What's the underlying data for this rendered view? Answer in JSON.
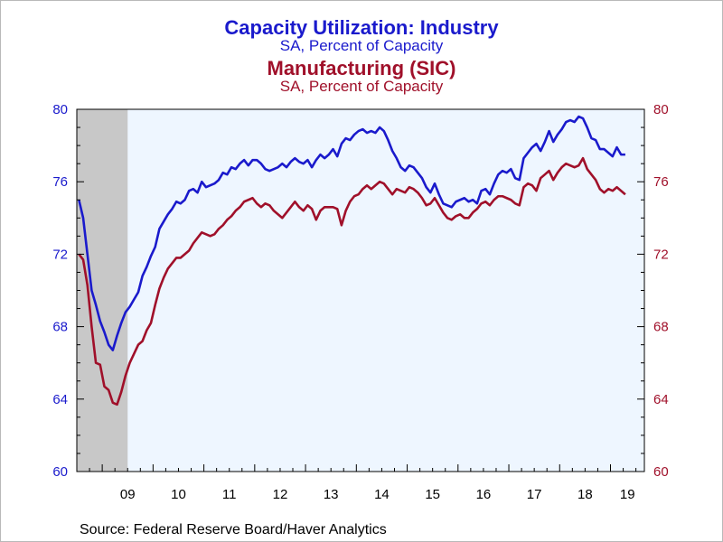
{
  "chart_data": {
    "type": "line",
    "title": "Capacity Utilization: Industry",
    "subtitle": "SA, Percent of Capacity",
    "title2": "Manufacturing (SIC)",
    "subtitle2": "SA, Percent of Capacity",
    "source": "Source:  Federal Reserve Board/Haver Analytics",
    "x_start": "2008-07",
    "x_end": "2019-08",
    "frequency": "monthly",
    "x_tick_labels": [
      "09",
      "10",
      "11",
      "12",
      "13",
      "14",
      "15",
      "16",
      "17",
      "18",
      "19"
    ],
    "ylim": [
      60,
      80
    ],
    "y_ticks": [
      60,
      64,
      68,
      72,
      76,
      80
    ],
    "recession": {
      "start": "2008-07",
      "end": "2009-06",
      "color": "#c8c8c8"
    },
    "plot_background": "#eef6ff",
    "series": [
      {
        "name": "Capacity Utilization: Industry",
        "axis": "left",
        "color": "#1a1acc",
        "values": [
          75.0,
          74.0,
          72.0,
          70.0,
          69.2,
          68.3,
          67.7,
          67.0,
          66.7,
          67.5,
          68.2,
          68.8,
          69.1,
          69.5,
          69.9,
          70.8,
          71.3,
          71.9,
          72.4,
          73.4,
          73.8,
          74.2,
          74.5,
          74.9,
          74.8,
          75.0,
          75.5,
          75.6,
          75.4,
          76.0,
          75.7,
          75.8,
          75.9,
          76.1,
          76.5,
          76.4,
          76.8,
          76.7,
          77.0,
          77.2,
          76.9,
          77.2,
          77.2,
          77.0,
          76.7,
          76.6,
          76.7,
          76.8,
          77.0,
          76.8,
          77.1,
          77.3,
          77.1,
          77.0,
          77.2,
          76.8,
          77.2,
          77.5,
          77.3,
          77.5,
          77.8,
          77.4,
          78.1,
          78.4,
          78.3,
          78.6,
          78.8,
          78.9,
          78.7,
          78.8,
          78.7,
          79.0,
          78.8,
          78.3,
          77.7,
          77.3,
          76.8,
          76.6,
          76.9,
          76.8,
          76.5,
          76.2,
          75.7,
          75.4,
          75.9,
          75.3,
          74.8,
          74.7,
          74.6,
          74.9,
          75.0,
          75.1,
          74.9,
          75.0,
          74.8,
          75.5,
          75.6,
          75.3,
          75.9,
          76.4,
          76.6,
          76.5,
          76.7,
          76.2,
          76.1,
          77.3,
          77.6,
          77.9,
          78.1,
          77.7,
          78.2,
          78.8,
          78.2,
          78.6,
          78.9,
          79.3,
          79.4,
          79.3,
          79.6,
          79.5,
          79.0,
          78.4,
          78.3,
          77.8,
          77.8,
          77.6,
          77.4,
          77.9,
          77.5,
          77.5
        ]
      },
      {
        "name": "Manufacturing (SIC)",
        "axis": "right",
        "color": "#a0102a",
        "values": [
          72.0,
          71.7,
          70.3,
          68.0,
          66.0,
          65.9,
          64.7,
          64.5,
          63.8,
          63.7,
          64.4,
          65.3,
          66.0,
          66.5,
          67.0,
          67.2,
          67.8,
          68.2,
          69.2,
          70.1,
          70.7,
          71.2,
          71.5,
          71.8,
          71.8,
          72.0,
          72.2,
          72.6,
          72.9,
          73.2,
          73.1,
          73.0,
          73.1,
          73.4,
          73.6,
          73.9,
          74.1,
          74.4,
          74.6,
          74.9,
          75.0,
          75.1,
          74.8,
          74.6,
          74.8,
          74.7,
          74.4,
          74.2,
          74.0,
          74.3,
          74.6,
          74.9,
          74.6,
          74.4,
          74.7,
          74.5,
          73.9,
          74.4,
          74.6,
          74.6,
          74.6,
          74.5,
          73.6,
          74.4,
          74.9,
          75.2,
          75.3,
          75.6,
          75.8,
          75.6,
          75.8,
          76.0,
          75.9,
          75.6,
          75.3,
          75.6,
          75.5,
          75.4,
          75.7,
          75.6,
          75.4,
          75.1,
          74.7,
          74.8,
          75.1,
          74.7,
          74.3,
          74.0,
          73.9,
          74.1,
          74.2,
          74.0,
          74.0,
          74.3,
          74.5,
          74.8,
          74.9,
          74.7,
          75.0,
          75.2,
          75.2,
          75.1,
          75.0,
          74.8,
          74.7,
          75.7,
          75.9,
          75.8,
          75.5,
          76.2,
          76.4,
          76.6,
          76.1,
          76.5,
          76.8,
          77.0,
          76.9,
          76.8,
          76.9,
          77.3,
          76.7,
          76.4,
          76.1,
          75.6,
          75.4,
          75.6,
          75.5,
          75.7,
          75.5,
          75.3
        ]
      }
    ],
    "left_axis_color": "#1a1acc",
    "right_axis_color": "#a0102a",
    "title_color": "#1a1acc",
    "title2_color": "#a0102a"
  }
}
